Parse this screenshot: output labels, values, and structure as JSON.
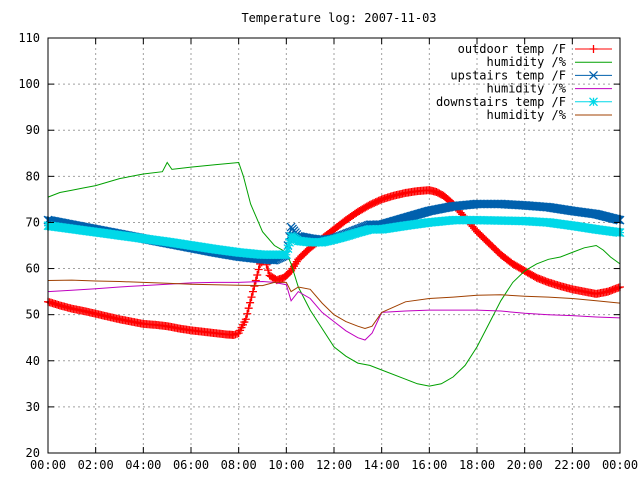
{
  "chart_data": {
    "type": "line",
    "title": "Temperature log: 2007-11-03",
    "xlabel": "",
    "ylabel": "",
    "xlim": [
      0,
      24
    ],
    "ylim": [
      20,
      110
    ],
    "grid": true,
    "legend_position": "top-right",
    "x_ticks": [
      "00:00",
      "02:00",
      "04:00",
      "06:00",
      "08:00",
      "10:00",
      "12:00",
      "14:00",
      "16:00",
      "18:00",
      "20:00",
      "22:00",
      "00:00"
    ],
    "y_ticks": [
      "20",
      "30",
      "40",
      "50",
      "60",
      "70",
      "80",
      "90",
      "100",
      "110"
    ],
    "series": [
      {
        "name": "outdoor temp /F",
        "color": "#ff0000",
        "marker": "plus",
        "x": [
          0,
          0.5,
          1,
          1.5,
          2,
          2.5,
          3,
          3.5,
          4,
          4.5,
          5,
          5.5,
          6,
          6.5,
          7,
          7.5,
          7.8,
          8,
          8.3,
          8.6,
          8.9,
          9.1,
          9.3,
          9.6,
          9.9,
          10.2,
          10.5,
          11,
          11.5,
          12,
          12.5,
          13,
          13.5,
          14,
          14.5,
          15,
          15.5,
          16,
          16.3,
          16.6,
          17,
          17.5,
          18,
          18.5,
          19,
          19.5,
          20,
          20.5,
          21,
          21.5,
          22,
          22.5,
          23,
          23.5,
          24
        ],
        "y": [
          52.8,
          52,
          51.3,
          50.8,
          50.2,
          49.6,
          49,
          48.5,
          48,
          47.8,
          47.5,
          47,
          46.6,
          46.3,
          46,
          45.7,
          45.6,
          46,
          49,
          55,
          61,
          62,
          58.5,
          57.5,
          58,
          59.5,
          62,
          64.5,
          66.5,
          68.5,
          70.5,
          72.3,
          73.8,
          75,
          75.8,
          76.4,
          76.8,
          77,
          76.6,
          75.8,
          74,
          71,
          68,
          65.5,
          63,
          61,
          59.5,
          58,
          57,
          56.2,
          55.5,
          55,
          54.5,
          55,
          56
        ]
      },
      {
        "name": "humidity /%",
        "color": "#00a000",
        "marker": "none",
        "x": [
          0,
          0.5,
          1,
          1.5,
          2,
          3,
          4,
          4.8,
          5,
          5.2,
          6,
          7,
          8,
          8.2,
          8.5,
          9,
          9.5,
          10,
          10.2,
          10.5,
          11,
          11.5,
          12,
          12.5,
          13,
          13.5,
          14,
          15,
          15.5,
          16,
          16.5,
          17,
          17.5,
          18,
          18.5,
          19,
          19.5,
          20,
          20.5,
          21,
          21.5,
          22,
          22.5,
          23,
          23.3,
          23.6,
          24
        ],
        "y": [
          75.5,
          76.5,
          77,
          77.5,
          78,
          79.5,
          80.5,
          81,
          83,
          81.5,
          82,
          82.5,
          83,
          80,
          74,
          68,
          65,
          63.5,
          61,
          56,
          51,
          47,
          43,
          41,
          39.5,
          39,
          38,
          36,
          35,
          34.5,
          35,
          36.5,
          39,
          43,
          48,
          53,
          57,
          59.5,
          61,
          62,
          62.5,
          63.5,
          64.5,
          65,
          64,
          62.5,
          61
        ]
      },
      {
        "name": "upstairs temp /F",
        "color": "#0060ad",
        "marker": "cross",
        "x": [
          0,
          1,
          2,
          3,
          4,
          5,
          6,
          7,
          8,
          9,
          9.5,
          10,
          10.2,
          10.5,
          11,
          11.5,
          12,
          12.5,
          13,
          13.5,
          14,
          15,
          16,
          17,
          18,
          19,
          20,
          21,
          22,
          23,
          24
        ],
        "y": [
          70.5,
          69.5,
          68.5,
          67.5,
          66.5,
          65.5,
          64.5,
          63.5,
          62.6,
          62,
          61.8,
          63,
          69,
          67,
          66.5,
          66.2,
          66.5,
          67.5,
          68.5,
          69.5,
          69.5,
          71,
          72.5,
          73.5,
          74,
          74,
          73.7,
          73.3,
          72.5,
          71.8,
          70.5
        ]
      },
      {
        "name": "humidity /%",
        "color": "#c000c0",
        "marker": "none",
        "x": [
          0,
          1,
          2,
          3,
          4,
          5,
          6,
          7,
          8,
          9,
          9.5,
          10,
          10.2,
          10.5,
          11,
          11.5,
          12,
          12.5,
          13,
          13.3,
          13.6,
          14,
          15,
          16,
          17,
          18,
          19,
          20,
          21,
          22,
          23,
          24
        ],
        "y": [
          55,
          55.3,
          55.6,
          56,
          56.3,
          56.6,
          56.9,
          57,
          57,
          57.2,
          57,
          56.5,
          53,
          55,
          53.5,
          50.5,
          48.5,
          46.5,
          45,
          44.5,
          46,
          50.5,
          50.8,
          51,
          51,
          51,
          50.8,
          50.3,
          50,
          49.8,
          49.5,
          49.3
        ]
      },
      {
        "name": "downstairs temp /F",
        "color": "#00d8e8",
        "marker": "star",
        "x": [
          0,
          1,
          2,
          3,
          4,
          5,
          6,
          7,
          8,
          9,
          9.5,
          10,
          10.2,
          10.5,
          11,
          11.5,
          12,
          12.5,
          13,
          13.5,
          14,
          15,
          16,
          17,
          18,
          19,
          20,
          21,
          22,
          23,
          24
        ],
        "y": [
          69.3,
          68.6,
          67.9,
          67.2,
          66.5,
          65.8,
          65,
          64.2,
          63.5,
          63,
          63,
          63,
          67,
          66,
          65.7,
          65.7,
          66.3,
          67,
          67.8,
          68.5,
          68.5,
          69.3,
          70,
          70.5,
          70.5,
          70.4,
          70.3,
          70,
          69.3,
          68.5,
          67.8
        ]
      },
      {
        "name": "humidity /%",
        "color": "#a04000",
        "marker": "none",
        "x": [
          0,
          1,
          2,
          3,
          4,
          5,
          6,
          7,
          8,
          9,
          9.5,
          10,
          10.2,
          10.5,
          11,
          11.5,
          12,
          12.5,
          13,
          13.3,
          13.6,
          14,
          15,
          16,
          17,
          18,
          19,
          20,
          21,
          22,
          23,
          24
        ],
        "y": [
          57.4,
          57.5,
          57.3,
          57.2,
          57,
          56.8,
          56.6,
          56.5,
          56.4,
          56.3,
          57,
          57,
          55,
          56,
          55.5,
          52.5,
          50,
          48.5,
          47.5,
          47,
          47.5,
          50.5,
          52.8,
          53.5,
          53.8,
          54.2,
          54.3,
          54,
          53.8,
          53.5,
          53,
          52.5
        ]
      }
    ]
  }
}
